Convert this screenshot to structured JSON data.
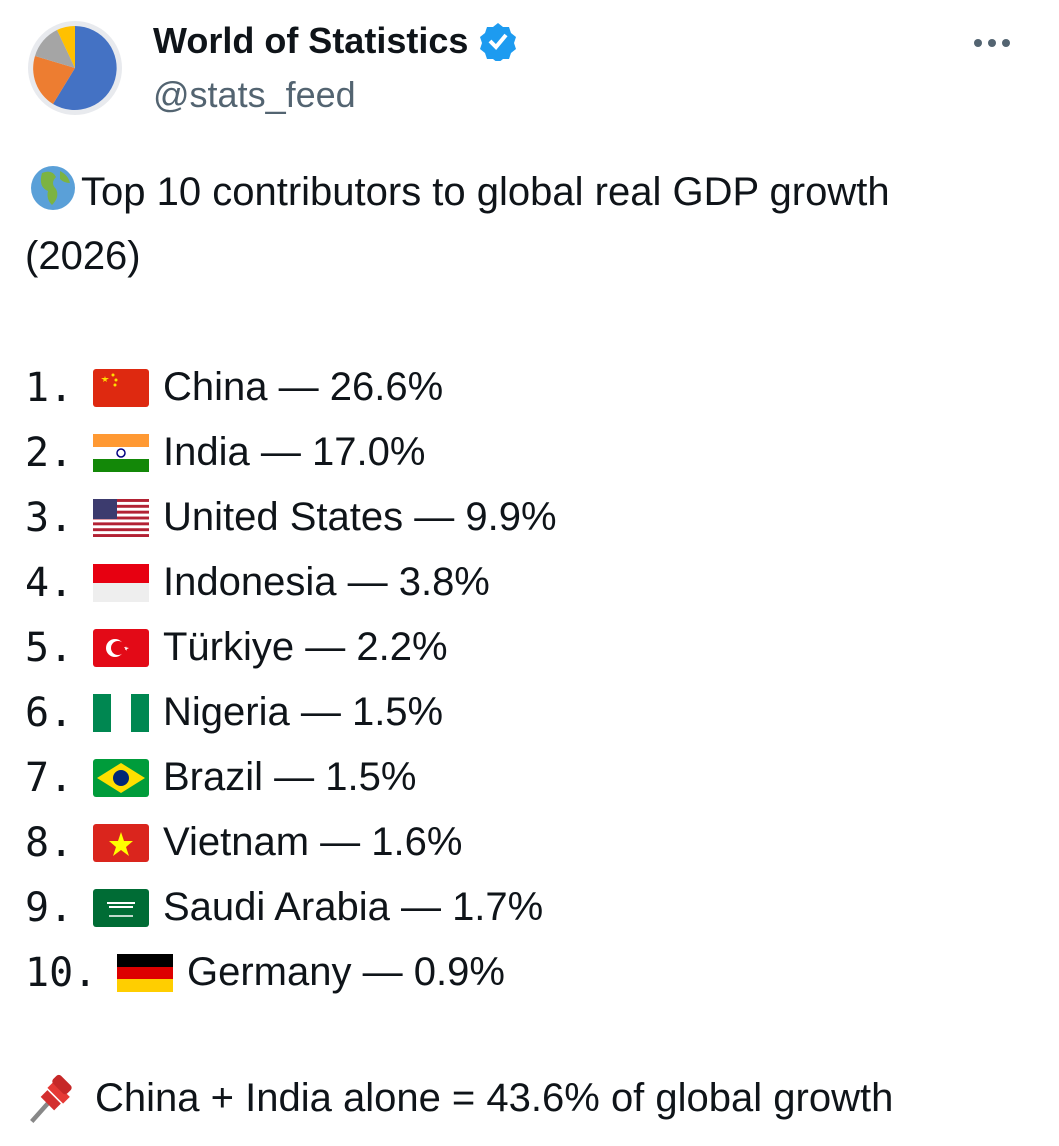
{
  "header": {
    "name": "World of Statistics",
    "handle": "@stats_feed"
  },
  "post": {
    "title": "Top 10 contributors to global real GDP growth (2026)",
    "items": [
      {
        "rank": "1.",
        "text": "China — 26.6%"
      },
      {
        "rank": "2.",
        "text": "India — 17.0%"
      },
      {
        "rank": "3.",
        "text": "United States — 9.9%"
      },
      {
        "rank": "4.",
        "text": "Indonesia — 3.8%"
      },
      {
        "rank": "5.",
        "text": "Türkiye — 2.2%"
      },
      {
        "rank": "6.",
        "text": "Nigeria — 1.5%"
      },
      {
        "rank": "7.",
        "text": "Brazil — 1.5%"
      },
      {
        "rank": "8.",
        "text": "Vietnam — 1.6%"
      },
      {
        "rank": "9.",
        "text": "Saudi Arabia — 1.7%"
      },
      {
        "rank": "10.",
        "text": "Germany — 0.9%"
      }
    ],
    "note": "China + India alone = 43.6% of global growth"
  }
}
